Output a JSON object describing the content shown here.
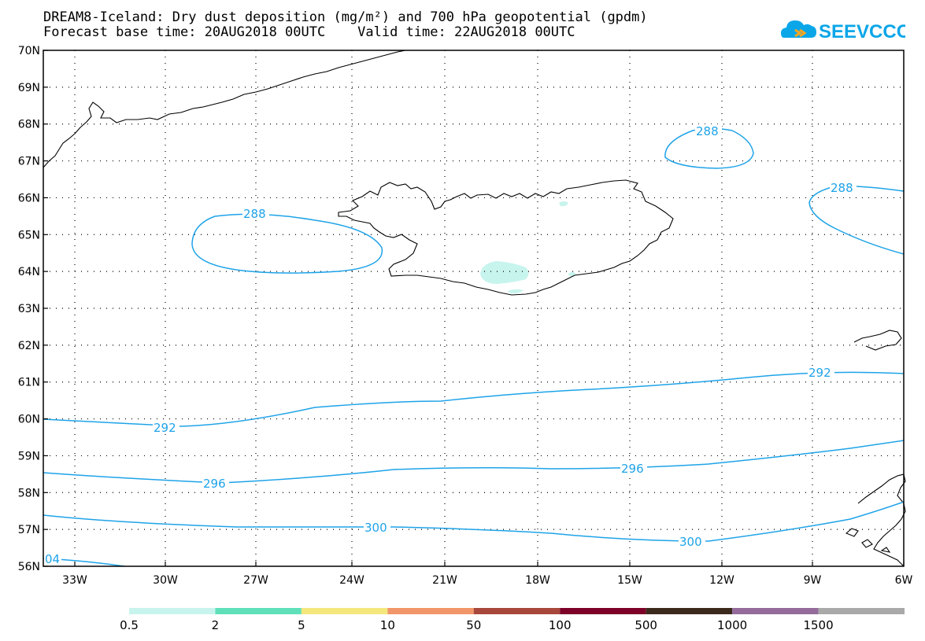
{
  "title": {
    "line1": "DREAM8-Iceland: Dry dust deposition (mg/m²) and 700 hPa geopotential (gpdm)",
    "line2": "Forecast base time: 20AUG2018 00UTC    Valid time: 22AUG2018 00UTC"
  },
  "logo": {
    "text": "SEEVCCC",
    "icon": "cloud-icon",
    "color": "#0aa6e8"
  },
  "axes": {
    "lat_labels": [
      "70N",
      "69N",
      "68N",
      "67N",
      "66N",
      "65N",
      "64N",
      "63N",
      "62N",
      "61N",
      "60N",
      "59N",
      "58N",
      "57N",
      "56N"
    ],
    "lon_labels": [
      "33W",
      "30W",
      "27W",
      "24W",
      "21W",
      "18W",
      "15W",
      "12W",
      "9W",
      "6W"
    ]
  },
  "contours": {
    "color": "#1ea3e8",
    "labels": [
      "288",
      "288",
      "288",
      "292",
      "292",
      "296",
      "296",
      "300",
      "300",
      "04"
    ]
  },
  "colorbar": {
    "colors": [
      "#c8f4ee",
      "#5fe0b8",
      "#f4e77c",
      "#f19668",
      "#a8473b",
      "#7d0028",
      "#3b2a1c",
      "#946b9b",
      "#a9a9a9"
    ],
    "labels": [
      "0.5",
      "2",
      "5",
      "10",
      "50",
      "100",
      "500",
      "1000",
      "1500"
    ]
  },
  "colors": {
    "coastline": "#000000",
    "dust": "#c8f4ee",
    "grid": "#000000"
  }
}
